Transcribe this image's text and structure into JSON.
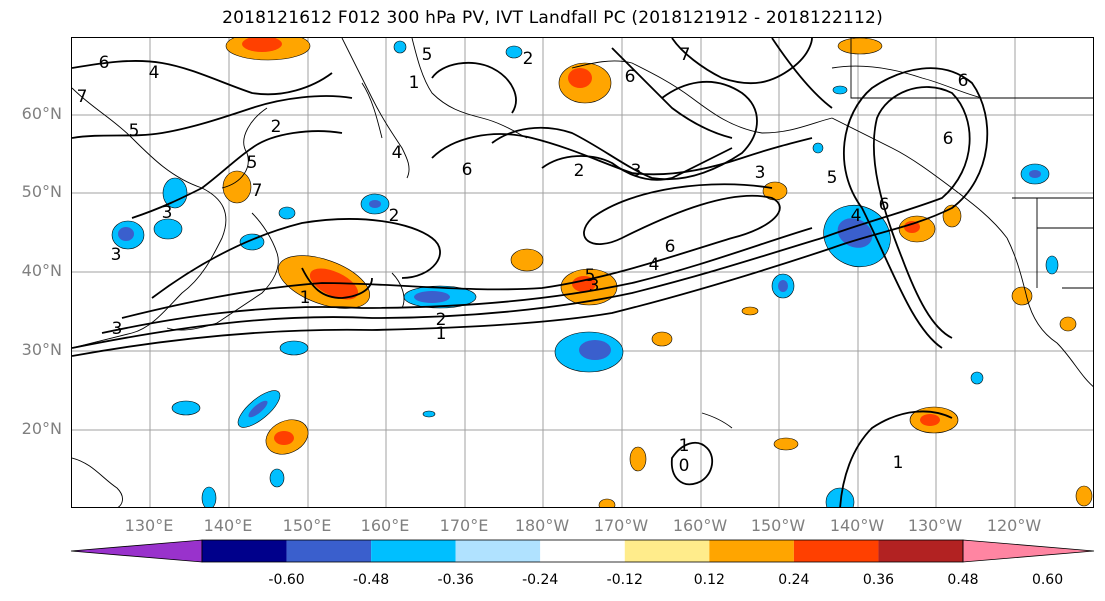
{
  "title": "2018121612 F012 300 hPa PV, IVT Landfall PC (2018121912 - 2018122112)",
  "lat_labels": [
    "60°N",
    "50°N",
    "40°N",
    "30°N",
    "20°N"
  ],
  "lon_labels": [
    "130°E",
    "140°E",
    "150°E",
    "160°E",
    "170°E",
    "180°W",
    "170°W",
    "160°W",
    "150°W",
    "140°W",
    "130°W",
    "120°W"
  ],
  "contour_labels": [
    "6",
    "4",
    "5",
    "7",
    "2",
    "5",
    "2",
    "7",
    "6",
    "3",
    "3",
    "4",
    "5",
    "7",
    "6",
    "6",
    "6",
    "2",
    "3",
    "3",
    "5",
    "4",
    "6",
    "6",
    "4",
    "2",
    "1",
    "3",
    "1",
    "2",
    "3",
    "1",
    "0",
    "1",
    "5",
    "1"
  ],
  "colorbar": {
    "ticks": [
      "-0.60",
      "-0.48",
      "-0.36",
      "-0.24",
      "-0.12",
      "0.12",
      "0.24",
      "0.36",
      "0.48",
      "0.60"
    ],
    "colors": [
      "#9932cc",
      "#00008b",
      "#3a5fcd",
      "#00bfff",
      "#b0e2ff",
      "#ffffff",
      "#ffec8b",
      "#ffa500",
      "#ff4000",
      "#b22222",
      "#ff85a2"
    ]
  },
  "shading_colors": {
    "positive_light": "#ffa500",
    "positive_mid": "#ff4000",
    "positive_edge": "#ffec8b",
    "negative_light": "#00bfff",
    "negative_mid": "#3a5fcd",
    "negative_edge": "#b0e2ff"
  }
}
